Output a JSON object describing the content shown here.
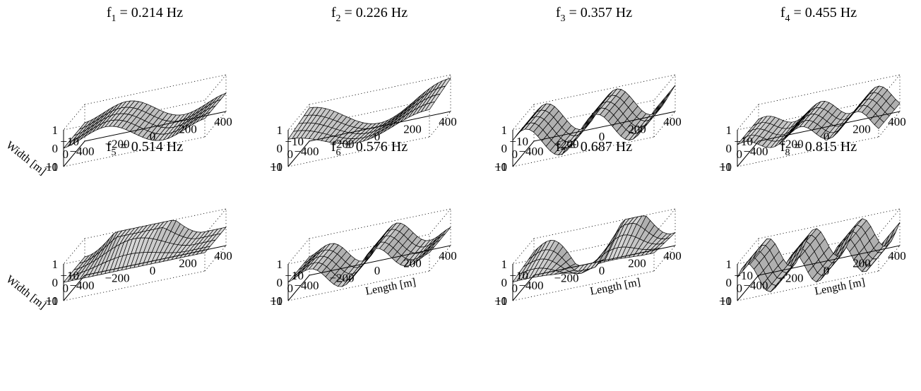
{
  "chart_data": {
    "type": "surface",
    "grid": false,
    "axes": {
      "x": {
        "label": "Length [m]",
        "range": [
          -400,
          400
        ],
        "ticks": [
          -400,
          -200,
          0,
          200,
          400
        ],
        "tick_labels": [
          "−400",
          "−200",
          "0",
          "200",
          "400"
        ]
      },
      "y": {
        "label": "Width [m]",
        "range": [
          -10,
          10
        ],
        "ticks": [
          -10,
          0,
          10
        ],
        "tick_labels": [
          "−10",
          "0",
          "10"
        ]
      },
      "z": {
        "range": [
          -1,
          1
        ],
        "ticks": [
          -1,
          0,
          1
        ],
        "tick_labels": [
          "−1",
          "0",
          "1"
        ]
      }
    },
    "panels": [
      {
        "title_sym": "f",
        "title_sub": "1",
        "title_rest": " = 0.214 Hz",
        "frequency_hz": 0.214
      },
      {
        "title_sym": "f",
        "title_sub": "2",
        "title_rest": " = 0.226 Hz",
        "frequency_hz": 0.226
      },
      {
        "title_sym": "f",
        "title_sub": "3",
        "title_rest": " = 0.357 Hz",
        "frequency_hz": 0.357
      },
      {
        "title_sym": "f",
        "title_sub": "4",
        "title_rest": " = 0.455 Hz",
        "frequency_hz": 0.455
      },
      {
        "title_sym": "f",
        "title_sub": "5",
        "title_rest": " = 0.514 Hz",
        "frequency_hz": 0.514
      },
      {
        "title_sym": "f",
        "title_sub": "6",
        "title_rest": " = 0.576 Hz",
        "frequency_hz": 0.576
      },
      {
        "title_sym": "f",
        "title_sub": "7",
        "title_rest": " = 0.687 Hz",
        "frequency_hz": 0.687
      },
      {
        "title_sym": "f",
        "title_sub": "8",
        "title_rest": " = 0.815 Hz",
        "frequency_hz": 0.815
      }
    ]
  }
}
